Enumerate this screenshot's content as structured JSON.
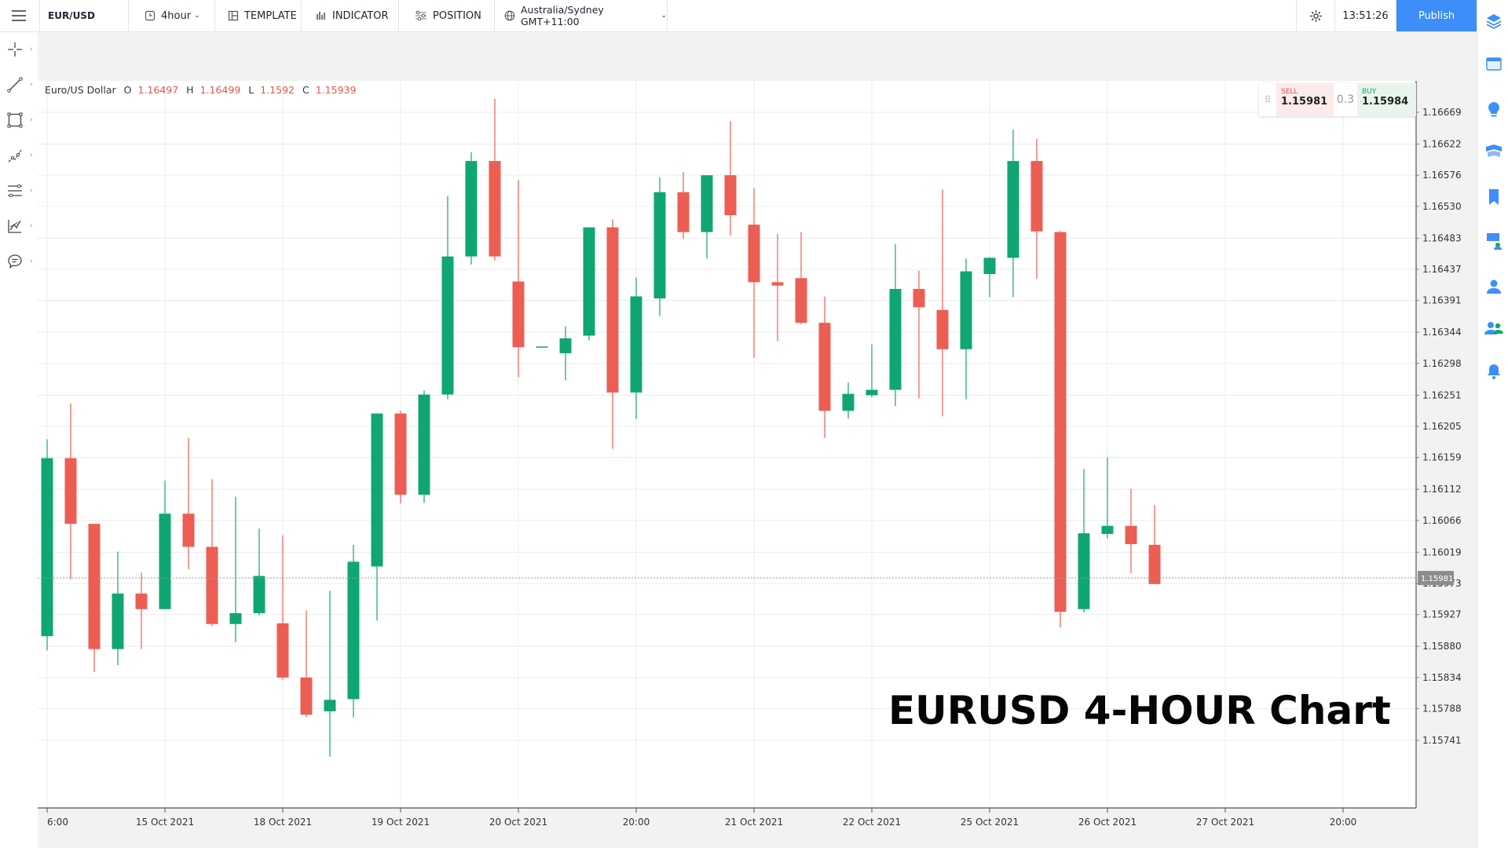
{
  "toolbar": {
    "symbol": "EUR/USD",
    "timeframe": "4hour",
    "template_label": "TEMPLATE",
    "indicator_label": "INDICATOR",
    "position_label": "POSITION",
    "timezone": "Australia/Sydney GMT+11:00",
    "clock": "13:51:26",
    "publish_label": "Publish"
  },
  "left_tools": [
    "crosshair-icon",
    "trend-line-icon",
    "rectangle-icon",
    "brush-icon",
    "fib-icon",
    "pattern-icon",
    "comment-icon"
  ],
  "right_tools": [
    "layers-icon",
    "calendar-icon",
    "idea-icon",
    "flag-icon",
    "bookmark-icon",
    "screen-icon",
    "user-icon",
    "group-icon",
    "bell-icon"
  ],
  "legend": {
    "name": "Euro/US Dollar",
    "o_label": "O",
    "o": "1.16497",
    "h_label": "H",
    "h": "1.16499",
    "l_label": "L",
    "l": "1.1592",
    "c_label": "C",
    "c": "1.15939"
  },
  "trade": {
    "sell_label": "SELL",
    "sell_price": "1.15981",
    "spread": "0.3",
    "buy_label": "BUY",
    "buy_price": "1.15984"
  },
  "watermark": "EURUSD 4-HOUR Chart",
  "colors": {
    "up": "#0fa674",
    "down": "#ec5e53",
    "accent": "#3d8ef8"
  },
  "chart_data": {
    "type": "candlestick",
    "last_price_label": "1.15981",
    "y_ticks": [
      "1.16669",
      "1.16622",
      "1.16576",
      "1.16530",
      "1.16483",
      "1.16437",
      "1.16391",
      "1.16344",
      "1.16298",
      "1.16251",
      "1.16205",
      "1.16159",
      "1.16112",
      "1.16066",
      "1.16019",
      "1.15973",
      "1.15927",
      "1.15880",
      "1.15834",
      "1.15788",
      "1.15741"
    ],
    "ylim": [
      1.157,
      1.1671
    ],
    "x_labels": [
      "6:00",
      "15 Oct 2021",
      "18 Oct 2021",
      "19 Oct 2021",
      "20 Oct 2021",
      "20:00",
      "21 Oct 2021",
      "22 Oct 2021",
      "25 Oct 2021",
      "26 Oct 2021",
      "27 Oct 2021",
      "20:00"
    ],
    "x_label_index": [
      0,
      5,
      10,
      15,
      20,
      25,
      30,
      35,
      40,
      45,
      50,
      55
    ],
    "candles": [
      {
        "o": 1.15895,
        "h": 1.16186,
        "l": 1.15874,
        "c": 1.16158
      },
      {
        "o": 1.16158,
        "h": 1.16239,
        "l": 1.15979,
        "c": 1.16061
      },
      {
        "o": 1.16061,
        "h": 1.16061,
        "l": 1.15842,
        "c": 1.15876
      },
      {
        "o": 1.15876,
        "h": 1.1602,
        "l": 1.15852,
        "c": 1.15958
      },
      {
        "o": 1.15958,
        "h": 1.15989,
        "l": 1.15876,
        "c": 1.15935
      },
      {
        "o": 1.15935,
        "h": 1.16125,
        "l": 1.15935,
        "c": 1.16076
      },
      {
        "o": 1.16076,
        "h": 1.16188,
        "l": 1.15994,
        "c": 1.16027
      },
      {
        "o": 1.16027,
        "h": 1.16127,
        "l": 1.1591,
        "c": 1.15913
      },
      {
        "o": 1.15913,
        "h": 1.16101,
        "l": 1.15886,
        "c": 1.15929
      },
      {
        "o": 1.15929,
        "h": 1.16054,
        "l": 1.15926,
        "c": 1.15984
      },
      {
        "o": 1.15914,
        "h": 1.16044,
        "l": 1.1583,
        "c": 1.15834
      },
      {
        "o": 1.15834,
        "h": 1.15933,
        "l": 1.15776,
        "c": 1.15779
      },
      {
        "o": 1.15784,
        "h": 1.15962,
        "l": 1.15717,
        "c": 1.15801
      },
      {
        "o": 1.15802,
        "h": 1.1603,
        "l": 1.15775,
        "c": 1.16005
      },
      {
        "o": 1.15998,
        "h": 1.16224,
        "l": 1.15918,
        "c": 1.16224
      },
      {
        "o": 1.16224,
        "h": 1.16228,
        "l": 1.16091,
        "c": 1.16104
      },
      {
        "o": 1.16104,
        "h": 1.16258,
        "l": 1.16092,
        "c": 1.16252
      },
      {
        "o": 1.16252,
        "h": 1.16545,
        "l": 1.16245,
        "c": 1.16456
      },
      {
        "o": 1.16456,
        "h": 1.1661,
        "l": 1.16444,
        "c": 1.16597
      },
      {
        "o": 1.16597,
        "h": 1.16689,
        "l": 1.1645,
        "c": 1.16456
      },
      {
        "o": 1.16419,
        "h": 1.16569,
        "l": 1.16278,
        "c": 1.16322
      },
      {
        "o": 1.16323,
        "h": 1.16323,
        "l": 1.16323,
        "c": 1.16323
      },
      {
        "o": 1.16313,
        "h": 1.16353,
        "l": 1.16273,
        "c": 1.16335
      },
      {
        "o": 1.16339,
        "h": 1.16491,
        "l": 1.16332,
        "c": 1.16499
      },
      {
        "o": 1.16499,
        "h": 1.16511,
        "l": 1.16172,
        "c": 1.16255
      },
      {
        "o": 1.16255,
        "h": 1.16425,
        "l": 1.16216,
        "c": 1.16397
      },
      {
        "o": 1.16394,
        "h": 1.16573,
        "l": 1.16368,
        "c": 1.16551
      },
      {
        "o": 1.16551,
        "h": 1.16581,
        "l": 1.16482,
        "c": 1.16492
      },
      {
        "o": 1.16492,
        "h": 1.16569,
        "l": 1.16453,
        "c": 1.16576
      },
      {
        "o": 1.16576,
        "h": 1.16656,
        "l": 1.16487,
        "c": 1.16517
      },
      {
        "o": 1.16503,
        "h": 1.16557,
        "l": 1.16306,
        "c": 1.16418
      },
      {
        "o": 1.16418,
        "h": 1.16489,
        "l": 1.16331,
        "c": 1.16413
      },
      {
        "o": 1.16424,
        "h": 1.16492,
        "l": 1.16356,
        "c": 1.16358
      },
      {
        "o": 1.16358,
        "h": 1.16397,
        "l": 1.16188,
        "c": 1.16228
      },
      {
        "o": 1.16228,
        "h": 1.1627,
        "l": 1.16217,
        "c": 1.16253
      },
      {
        "o": 1.16251,
        "h": 1.16326,
        "l": 1.16248,
        "c": 1.16259
      },
      {
        "o": 1.16259,
        "h": 1.16474,
        "l": 1.16235,
        "c": 1.16408
      },
      {
        "o": 1.16408,
        "h": 1.16435,
        "l": 1.16246,
        "c": 1.16381
      },
      {
        "o": 1.16377,
        "h": 1.16555,
        "l": 1.1622,
        "c": 1.16319
      },
      {
        "o": 1.16319,
        "h": 1.16453,
        "l": 1.16245,
        "c": 1.16434
      },
      {
        "o": 1.1643,
        "h": 1.16455,
        "l": 1.16396,
        "c": 1.16454
      },
      {
        "o": 1.16454,
        "h": 1.16643,
        "l": 1.16396,
        "c": 1.16597
      },
      {
        "o": 1.16597,
        "h": 1.1663,
        "l": 1.16423,
        "c": 1.16493
      },
      {
        "o": 1.16492,
        "h": 1.16494,
        "l": 1.15908,
        "c": 1.15931
      },
      {
        "o": 1.15935,
        "h": 1.16142,
        "l": 1.1593,
        "c": 1.16047
      },
      {
        "o": 1.16046,
        "h": 1.16159,
        "l": 1.16039,
        "c": 1.16058
      },
      {
        "o": 1.16058,
        "h": 1.16113,
        "l": 1.15988,
        "c": 1.16031
      },
      {
        "o": 1.1603,
        "h": 1.16089,
        "l": 1.15974,
        "c": 1.15972
      }
    ]
  }
}
